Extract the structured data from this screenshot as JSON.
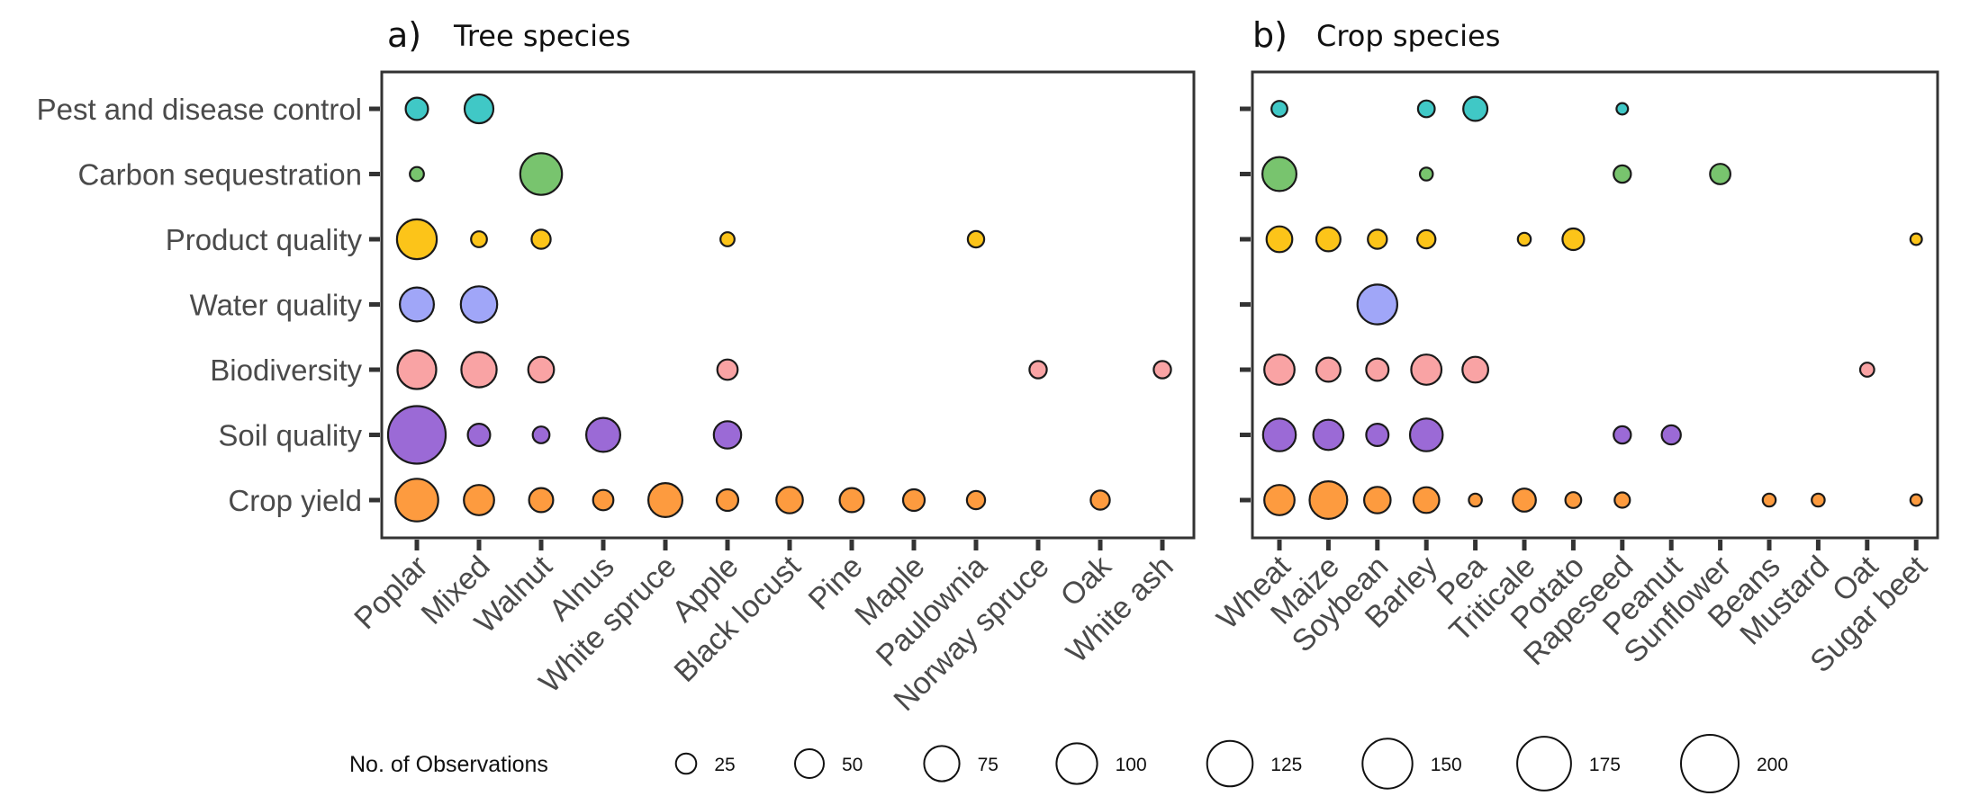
{
  "chart_data": [
    {
      "type": "scatter",
      "panel_letter": "a)",
      "title": "Tree species",
      "y_categories": [
        "Pest and disease control",
        "Carbon sequestration",
        "Product quality",
        "Water quality",
        "Biodiversity",
        "Soil quality",
        "Crop yield"
      ],
      "x_categories": [
        "Poplar",
        "Mixed",
        "Walnut",
        "Alnus",
        "White spruce",
        "Apple",
        "Black locust",
        "Pine",
        "Maple",
        "Paulownia",
        "Norway spruce",
        "Oak",
        "White ash"
      ],
      "colors": {
        "Pest and disease control": "#40c8c6",
        "Carbon sequestration": "#78c46e",
        "Product quality": "#fcc419",
        "Water quality": "#a0a6f8",
        "Biodiversity": "#f9a3a4",
        "Soil quality": "#9b6ad6",
        "Crop yield": "#fd9b3f"
      },
      "points": [
        {
          "x": "Poplar",
          "y": "Pest and disease control",
          "n": 30
        },
        {
          "x": "Mixed",
          "y": "Pest and disease control",
          "n": 50
        },
        {
          "x": "Poplar",
          "y": "Carbon sequestration",
          "n": 12
        },
        {
          "x": "Walnut",
          "y": "Carbon sequestration",
          "n": 105
        },
        {
          "x": "Poplar",
          "y": "Product quality",
          "n": 95
        },
        {
          "x": "Mixed",
          "y": "Product quality",
          "n": 15
        },
        {
          "x": "Walnut",
          "y": "Product quality",
          "n": 22
        },
        {
          "x": "Apple",
          "y": "Product quality",
          "n": 12
        },
        {
          "x": "Paulownia",
          "y": "Product quality",
          "n": 16
        },
        {
          "x": "Poplar",
          "y": "Water quality",
          "n": 70
        },
        {
          "x": "Mixed",
          "y": "Water quality",
          "n": 80
        },
        {
          "x": "Poplar",
          "y": "Biodiversity",
          "n": 90
        },
        {
          "x": "Mixed",
          "y": "Biodiversity",
          "n": 75
        },
        {
          "x": "Walnut",
          "y": "Biodiversity",
          "n": 40
        },
        {
          "x": "Apple",
          "y": "Biodiversity",
          "n": 25
        },
        {
          "x": "Norway spruce",
          "y": "Biodiversity",
          "n": 18
        },
        {
          "x": "White ash",
          "y": "Biodiversity",
          "n": 18
        },
        {
          "x": "Poplar",
          "y": "Soil quality",
          "n": 200
        },
        {
          "x": "Mixed",
          "y": "Soil quality",
          "n": 30
        },
        {
          "x": "Walnut",
          "y": "Soil quality",
          "n": 17
        },
        {
          "x": "Alnus",
          "y": "Soil quality",
          "n": 70
        },
        {
          "x": "Apple",
          "y": "Soil quality",
          "n": 45
        },
        {
          "x": "Poplar",
          "y": "Crop yield",
          "n": 110
        },
        {
          "x": "Mixed",
          "y": "Crop yield",
          "n": 55
        },
        {
          "x": "Walnut",
          "y": "Crop yield",
          "n": 35
        },
        {
          "x": "Alnus",
          "y": "Crop yield",
          "n": 25
        },
        {
          "x": "White spruce",
          "y": "Crop yield",
          "n": 70
        },
        {
          "x": "Apple",
          "y": "Crop yield",
          "n": 28
        },
        {
          "x": "Black locust",
          "y": "Crop yield",
          "n": 42
        },
        {
          "x": "Pine",
          "y": "Crop yield",
          "n": 35
        },
        {
          "x": "Maple",
          "y": "Crop yield",
          "n": 28
        },
        {
          "x": "Paulownia",
          "y": "Crop yield",
          "n": 20
        },
        {
          "x": "Oak",
          "y": "Crop yield",
          "n": 22
        }
      ]
    },
    {
      "type": "scatter",
      "panel_letter": "b)",
      "title": "Crop species",
      "y_categories": [
        "Pest and disease control",
        "Carbon sequestration",
        "Product quality",
        "Water quality",
        "Biodiversity",
        "Soil quality",
        "Crop yield"
      ],
      "x_categories": [
        "Wheat",
        "Maize",
        "Soybean",
        "Barley",
        "Pea",
        "Triticale",
        "Potato",
        "Rapeseed",
        "Peanut",
        "Sunflower",
        "Beans",
        "Mustard",
        "Oat",
        "Sugar beet"
      ],
      "colors": {
        "Pest and disease control": "#40c8c6",
        "Carbon sequestration": "#78c46e",
        "Product quality": "#fcc419",
        "Water quality": "#a0a6f8",
        "Biodiversity": "#f9a3a4",
        "Soil quality": "#9b6ad6",
        "Crop yield": "#fd9b3f"
      },
      "points": [
        {
          "x": "Wheat",
          "y": "Pest and disease control",
          "n": 15
        },
        {
          "x": "Barley",
          "y": "Pest and disease control",
          "n": 17
        },
        {
          "x": "Pea",
          "y": "Pest and disease control",
          "n": 35
        },
        {
          "x": "Rapeseed",
          "y": "Pest and disease control",
          "n": 8
        },
        {
          "x": "Wheat",
          "y": "Carbon sequestration",
          "n": 70
        },
        {
          "x": "Barley",
          "y": "Carbon sequestration",
          "n": 10
        },
        {
          "x": "Rapeseed",
          "y": "Carbon sequestration",
          "n": 18
        },
        {
          "x": "Sunflower",
          "y": "Carbon sequestration",
          "n": 25
        },
        {
          "x": "Wheat",
          "y": "Product quality",
          "n": 40
        },
        {
          "x": "Maize",
          "y": "Product quality",
          "n": 35
        },
        {
          "x": "Soybean",
          "y": "Product quality",
          "n": 22
        },
        {
          "x": "Barley",
          "y": "Product quality",
          "n": 20
        },
        {
          "x": "Triticale",
          "y": "Product quality",
          "n": 10
        },
        {
          "x": "Potato",
          "y": "Product quality",
          "n": 28
        },
        {
          "x": "Sugar beet",
          "y": "Product quality",
          "n": 8
        },
        {
          "x": "Soybean",
          "y": "Water quality",
          "n": 95
        },
        {
          "x": "Wheat",
          "y": "Biodiversity",
          "n": 55
        },
        {
          "x": "Maize",
          "y": "Biodiversity",
          "n": 35
        },
        {
          "x": "Soybean",
          "y": "Biodiversity",
          "n": 30
        },
        {
          "x": "Barley",
          "y": "Biodiversity",
          "n": 55
        },
        {
          "x": "Pea",
          "y": "Biodiversity",
          "n": 40
        },
        {
          "x": "Oat",
          "y": "Biodiversity",
          "n": 12
        },
        {
          "x": "Wheat",
          "y": "Soil quality",
          "n": 65
        },
        {
          "x": "Maize",
          "y": "Soil quality",
          "n": 55
        },
        {
          "x": "Soybean",
          "y": "Soil quality",
          "n": 30
        },
        {
          "x": "Barley",
          "y": "Soil quality",
          "n": 65
        },
        {
          "x": "Rapeseed",
          "y": "Soil quality",
          "n": 18
        },
        {
          "x": "Peanut",
          "y": "Soil quality",
          "n": 22
        },
        {
          "x": "Wheat",
          "y": "Crop yield",
          "n": 55
        },
        {
          "x": "Maize",
          "y": "Crop yield",
          "n": 85
        },
        {
          "x": "Soybean",
          "y": "Crop yield",
          "n": 42
        },
        {
          "x": "Barley",
          "y": "Crop yield",
          "n": 40
        },
        {
          "x": "Pea",
          "y": "Crop yield",
          "n": 10
        },
        {
          "x": "Triticale",
          "y": "Crop yield",
          "n": 32
        },
        {
          "x": "Potato",
          "y": "Crop yield",
          "n": 15
        },
        {
          "x": "Rapeseed",
          "y": "Crop yield",
          "n": 14
        },
        {
          "x": "Beans",
          "y": "Crop yield",
          "n": 10
        },
        {
          "x": "Mustard",
          "y": "Crop yield",
          "n": 10
        },
        {
          "x": "Sugar beet",
          "y": "Crop yield",
          "n": 8
        }
      ]
    }
  ],
  "legend": {
    "title": "No. of Observations",
    "entries": [
      25,
      50,
      75,
      100,
      125,
      150,
      175,
      200
    ]
  }
}
